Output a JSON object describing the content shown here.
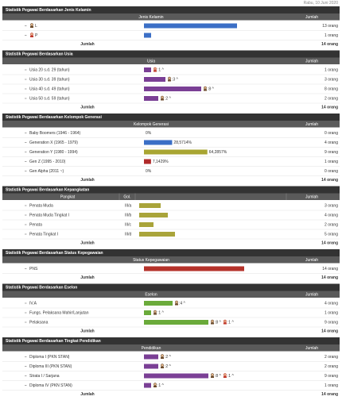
{
  "date": "Rabu, 10 Juni 2020",
  "sections": [
    {
      "title": "Statistik Pegawai Berdasarkan Jenis Kelamin",
      "columns": [
        "Jenis Kelamin",
        "Jumlah"
      ],
      "color": "#3b6fc6",
      "rows": [
        {
          "label": "L",
          "icon": "male",
          "jumlah": {
            "value": 13,
            "label": "13 orang"
          }
        },
        {
          "label": "P",
          "icon": "female",
          "jumlah": {
            "value": 1,
            "label": "1 orang"
          }
        }
      ],
      "total_label": "Jumlah",
      "total": "14 orang"
    },
    {
      "title": "Statistik Pegawai Berdasarkan Usia",
      "columns": [
        "Usia",
        "Jumlah"
      ],
      "color": "#7a3f95",
      "rows": [
        {
          "label": "Usia 20 s.d. 29 (tahun)",
          "jumlah": {
            "value": 1,
            "label": "1 orang"
          },
          "badges": [
            {
              "icon": "female",
              "label": ":1 ^"
            }
          ]
        },
        {
          "label": "Usia 30 s.d. 39 (tahun)",
          "jumlah": {
            "value": 3,
            "label": "3 orang"
          },
          "badges": [
            {
              "icon": "male",
              "label": ":3 ^"
            }
          ]
        },
        {
          "label": "Usia 40 s.d. 49 (tahun)",
          "jumlah": {
            "value": 8,
            "label": "8 orang"
          },
          "badges": [
            {
              "icon": "male",
              "label": ":8 ^"
            }
          ]
        },
        {
          "label": "Usia 50 s.d. 59 (tahun)",
          "jumlah": {
            "value": 2,
            "label": "2 orang"
          },
          "badges": [
            {
              "icon": "male",
              "label": ":2 ^"
            }
          ]
        }
      ],
      "total_label": "Jumlah",
      "total": "14 orang"
    },
    {
      "title": "Statistik Pegawai Berdasarkan Kelompok Generasi",
      "columns": [
        "Kelompok Generasi",
        "Jumlah"
      ],
      "color": "#3b6fc6",
      "rows": [
        {
          "label": "Baby Boomers (1946 - 1964)",
          "percent": {
            "value": 0,
            "label": "0%"
          },
          "jumlah": "0 orang"
        },
        {
          "label": "Generation X (1965 - 1979)",
          "color": "#3b6fc6",
          "percent": {
            "value": 28.5714,
            "label": "28,5714%"
          },
          "jumlah": "4 orang"
        },
        {
          "label": "Generation Y (1980 - 1994)",
          "color": "#a8a532",
          "percent": {
            "value": 64.2857,
            "label": "64,2857%"
          },
          "jumlah": "9 orang"
        },
        {
          "label": "Gen Z (1995 - 2010)",
          "color": "#b02a2a",
          "percent": {
            "value": 7.1429,
            "label": "7,1429%"
          },
          "jumlah": "1 orang"
        },
        {
          "label": "Gen Alpha (2011 ~)",
          "percent": {
            "value": 0,
            "label": "0%"
          },
          "jumlah": "0 orang"
        }
      ],
      "total_label": "Jumlah",
      "total": "14 orang"
    },
    {
      "title": "Statistik Pegawai Berdasarkan Kepangkatan",
      "columns": [
        "Pangkat",
        "Gol.",
        "Jumlah"
      ],
      "color": "#a9a43a",
      "rows": [
        {
          "label": "Penata Muda",
          "gol": "III/a",
          "jumlah": {
            "value": 3,
            "label": "3 orang"
          }
        },
        {
          "label": "Penata Muda Tingkat I",
          "gol": "III/b",
          "jumlah": {
            "value": 4,
            "label": "4 orang"
          }
        },
        {
          "label": "Penata",
          "gol": "III/c",
          "jumlah": {
            "value": 2,
            "label": "2 orang"
          }
        },
        {
          "label": "Penata Tingkat I",
          "gol": "III/d",
          "jumlah": {
            "value": 5,
            "label": "5 orang"
          }
        }
      ],
      "total_label": "Jumlah",
      "total": "14 orang"
    },
    {
      "title": "Statistik Pegawai Berdasarkan Status Kepegawaian",
      "columns": [
        "Status Kepegawaian",
        "Jumlah"
      ],
      "color": "#b5322a",
      "rows": [
        {
          "label": "PNS",
          "jumlah": {
            "value": 14,
            "label": "14 orang"
          }
        }
      ],
      "total_label": "Jumlah",
      "total": "14 orang"
    },
    {
      "title": "Statistik Pegawai Berdasarkan Eselon",
      "columns": [
        "Eselon",
        "Jumlah"
      ],
      "color": "#6aaa3a",
      "rows": [
        {
          "label": "IV.A",
          "jumlah": {
            "value": 4,
            "label": "4 orang"
          },
          "badges": [
            {
              "icon": "male",
              "label": ":4 ^"
            }
          ]
        },
        {
          "label": "Fungs. Pelaksana Mahir/Lanjutan",
          "jumlah": {
            "value": 1,
            "label": "1 orang"
          },
          "badges": [
            {
              "icon": "male",
              "label": ":1 ^"
            }
          ]
        },
        {
          "label": "Pelaksana",
          "jumlah": {
            "value": 9,
            "label": "9 orang"
          },
          "badges": [
            {
              "icon": "male",
              "label": ":8 ^"
            },
            {
              "icon": "female",
              "label": ":1 ^"
            }
          ]
        }
      ],
      "total_label": "Jumlah",
      "total": "14 orang"
    },
    {
      "title": "Statistik Pegawai Berdasarkan Tingkat Pendidikan",
      "columns": [
        "Pendidikan",
        "Jumlah"
      ],
      "color": "#7a3f95",
      "rows": [
        {
          "label": "Diploma I (PKN STAN)",
          "jumlah": {
            "value": 2,
            "label": "2 orang"
          },
          "badges": [
            {
              "icon": "male",
              "label": ":2 ^"
            }
          ]
        },
        {
          "label": "Diploma III (PKN STAN)",
          "jumlah": {
            "value": 2,
            "label": "2 orang"
          },
          "badges": [
            {
              "icon": "male",
              "label": ":2 ^"
            }
          ]
        },
        {
          "label": "Strata I / Sarjana",
          "jumlah": {
            "value": 9,
            "label": "9 orang"
          },
          "badges": [
            {
              "icon": "male",
              "label": ":8 ^"
            },
            {
              "icon": "female",
              "label": ":1 ^"
            }
          ]
        },
        {
          "label": "Diploma IV (PKN STAN)",
          "jumlah": {
            "value": 1,
            "label": "1 orang"
          },
          "badges": [
            {
              "icon": "male",
              "label": ":1 ^"
            }
          ]
        }
      ],
      "total_label": "Jumlah",
      "total": "14 orang"
    }
  ]
}
